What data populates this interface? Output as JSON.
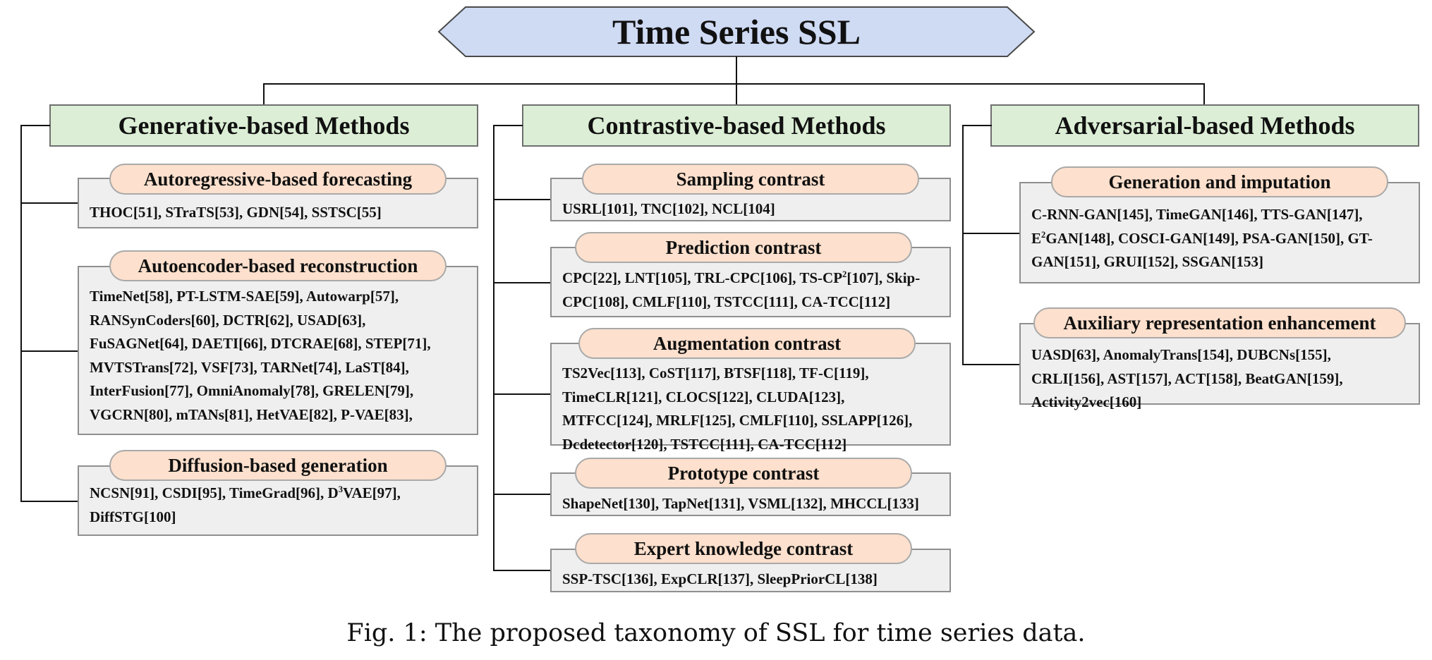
{
  "root": {
    "title": "Time Series SSL"
  },
  "branches": [
    {
      "title": "Generative-based Methods",
      "groups": [
        {
          "title": "Autoregressive-based forecasting",
          "text": "THOC[51], STraTS[53], GDN[54], SSTSC[55]"
        },
        {
          "title": "Autoencoder-based reconstruction",
          "text": "TimeNet[58], PT-LSTM-SAE[59], Autowarp[57],\nRANSynCoders[60], DCTR[62], USAD[63],\nFuSAGNet[64], DAETI[66], DTCRAE[68], STEP[71],\nMVTSTrans[72], VSF[73], TARNet[74], LaST[84],\nInterFusion[77], OmniAnomaly[78], GRELEN[79],\nVGCRN[80], mTANs[81], HetVAE[82], P-VAE[83],"
        },
        {
          "title": "Diffusion-based generation",
          "text_pre": "NCSN[91], CSDI[95],  TimeGrad[96], D",
          "text_sup": "3",
          "text_post": "VAE[97],\nDiffSTG[100]"
        }
      ]
    },
    {
      "title": "Contrastive-based Methods",
      "groups": [
        {
          "title": "Sampling contrast",
          "text": "USRL[101], TNC[102], NCL[104]"
        },
        {
          "title": "Prediction contrast",
          "text_pre": "CPC[22], LNT[105], TRL-CPC[106], TS-CP",
          "text_sup": "2",
          "text_post": "[107], Skip-\nCPC[108], CMLF[110], TSTCC[111], CA-TCC[112]"
        },
        {
          "title": "Augmentation contrast",
          "text": "TS2Vec[113], CoST[117], BTSF[118], TF-C[119],\nTimeCLR[121], CLOCS[122], CLUDA[123],\nMTFCC[124], MRLF[125], CMLF[110], SSLAPP[126],\nDcdetector[120], TSTCC[111], CA-TCC[112]"
        },
        {
          "title": "Prototype contrast",
          "text": "ShapeNet[130], TapNet[131], VSML[132], MHCCL[133]"
        },
        {
          "title": "Expert knowledge contrast",
          "text": "SSP-TSC[136], ExpCLR[137], SleepPriorCL[138]"
        }
      ]
    },
    {
      "title": "Adversarial-based Methods",
      "groups": [
        {
          "title": "Generation and imputation",
          "text_pre": "C-RNN-GAN[145], TimeGAN[146], TTS-GAN[147],\nE",
          "text_sup": "2",
          "text_post": "GAN[148], COSCI-GAN[149], PSA-GAN[150], GT-\nGAN[151], GRUI[152], SSGAN[153]"
        },
        {
          "title": "Auxiliary representation enhancement",
          "text": "UASD[63], AnomalyTrans[154], DUBCNs[155],\nCRLI[156], AST[157], ACT[158], BeatGAN[159],\nActivity2vec[160]"
        }
      ]
    }
  ],
  "caption": "Fig. 1: The proposed taxonomy of SSL for time series data.",
  "colors": {
    "root_fill": "#cfdaf3",
    "branch_fill": "#dcefd6",
    "pill_fill": "#fde0cd",
    "box_fill": "#efefef",
    "line": "#111111"
  }
}
